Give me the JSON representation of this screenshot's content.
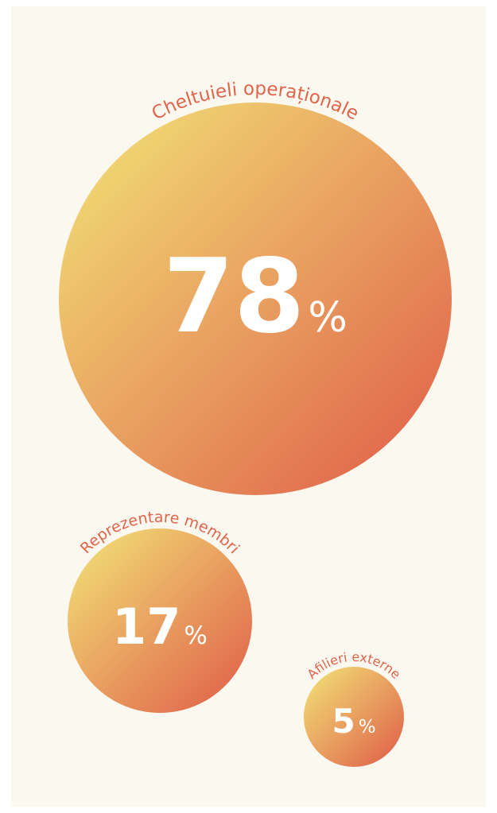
{
  "colors": {
    "background": "#fbf8f0",
    "gradient_start": "#f0d572",
    "gradient_end": "#e0614a",
    "label": "#e0654a",
    "value_text": "#ffffff"
  },
  "chart_data": {
    "type": "bubble",
    "unit": "%",
    "categories": [
      "Cheltuieli operaționale",
      "Reprezentare membri",
      "Afilieri externe"
    ],
    "values": [
      78,
      17,
      5
    ],
    "items": [
      {
        "label": "Cheltuieli operaționale",
        "value": 78,
        "value_text": "78",
        "unit": "%"
      },
      {
        "label": "Reprezentare membri",
        "value": 17,
        "value_text": "17",
        "unit": "%"
      },
      {
        "label": "Afilieri externe",
        "value": 5,
        "value_text": "5",
        "unit": "%"
      }
    ]
  }
}
